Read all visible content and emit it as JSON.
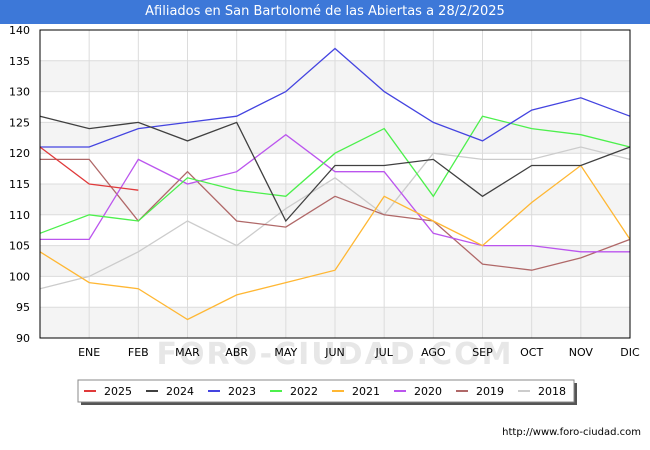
{
  "chart_data": {
    "type": "line",
    "title": "Afiliados en San Bartolomé de las Abiertas a 28/2/2025",
    "categories": [
      "",
      "ENE",
      "FEB",
      "MAR",
      "ABR",
      "MAY",
      "JUN",
      "JUL",
      "AGO",
      "SEP",
      "OCT",
      "NOV",
      "DIC"
    ],
    "ylim": [
      90,
      140
    ],
    "yticks": [
      90,
      95,
      100,
      105,
      110,
      115,
      120,
      125,
      130,
      135,
      140
    ],
    "grid": true,
    "legend_position": "bottom",
    "series": [
      {
        "name": "2025",
        "color": "#e0393a",
        "values": [
          121,
          115,
          114,
          null,
          null,
          null,
          null,
          null,
          null,
          null,
          null,
          null,
          null
        ]
      },
      {
        "name": "2024",
        "color": "#404040",
        "values": [
          126,
          124,
          125,
          122,
          125,
          109,
          118,
          118,
          119,
          113,
          118,
          118,
          121
        ]
      },
      {
        "name": "2023",
        "color": "#4444e0",
        "values": [
          121,
          121,
          124,
          125,
          126,
          130,
          137,
          130,
          125,
          122,
          127,
          129,
          126
        ]
      },
      {
        "name": "2022",
        "color": "#4cf04c",
        "values": [
          107,
          110,
          109,
          116,
          114,
          113,
          120,
          124,
          113,
          126,
          124,
          123,
          121
        ]
      },
      {
        "name": "2021",
        "color": "#ffb733",
        "values": [
          104,
          99,
          98,
          93,
          97,
          99,
          101,
          113,
          109,
          105,
          112,
          118,
          106
        ]
      },
      {
        "name": "2020",
        "color": "#bb55ee",
        "values": [
          106,
          106,
          119,
          115,
          117,
          123,
          117,
          117,
          107,
          105,
          105,
          104,
          104
        ]
      },
      {
        "name": "2019",
        "color": "#b06868",
        "values": [
          119,
          119,
          109,
          117,
          109,
          108,
          113,
          110,
          109,
          102,
          101,
          103,
          106
        ]
      },
      {
        "name": "2018",
        "color": "#cccccc",
        "values": [
          98,
          100,
          104,
          109,
          105,
          111,
          116,
          110,
          120,
          119,
          119,
          121,
          119
        ]
      }
    ]
  },
  "watermark": "FORO-CIUDAD.COM",
  "source": "http://www.foro-ciudad.com"
}
